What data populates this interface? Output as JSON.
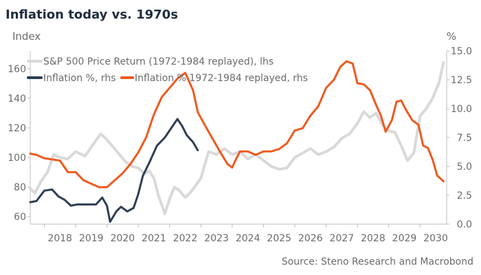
{
  "chart_data": {
    "type": "line",
    "title": "Inflation today vs. 1970s",
    "left_axis": {
      "label": "Index",
      "ticks": [
        "60",
        "80",
        "100",
        "120",
        "140",
        "160"
      ],
      "range": [
        55,
        172
      ]
    },
    "right_axis": {
      "label": "%",
      "ticks": [
        "0.0",
        "2.5",
        "5.0",
        "7.5",
        "10.0",
        "12.5",
        "15.0"
      ],
      "range": [
        0,
        15
      ]
    },
    "x_axis": {
      "ticks": [
        "2018",
        "2019",
        "2020",
        "2021",
        "2022",
        "2023",
        "2024",
        "2025",
        "2026",
        "2027",
        "2028",
        "2029",
        "2030"
      ],
      "range": [
        2017.55,
        2030.85
      ]
    },
    "source": "Source: Steno Research and Macrobond",
    "series": [
      {
        "name": "S&P 500 Price Return (1972-1984 replayed), lhs",
        "axis": "left",
        "color": "#d9d9d9",
        "x": [
          2017.55,
          2017.7,
          2017.9,
          2018.1,
          2018.3,
          2018.5,
          2018.75,
          2019.0,
          2019.3,
          2019.6,
          2019.8,
          2020.0,
          2020.2,
          2020.4,
          2020.6,
          2020.8,
          2021.0,
          2021.2,
          2021.35,
          2021.5,
          2021.65,
          2021.85,
          2022.0,
          2022.15,
          2022.3,
          2022.5,
          2022.65,
          2022.8,
          2023.0,
          2023.25,
          2023.5,
          2023.75,
          2024.0,
          2024.25,
          2024.5,
          2024.75,
          2025.0,
          2025.25,
          2025.5,
          2025.75,
          2026.0,
          2026.25,
          2026.5,
          2026.75,
          2027.0,
          2027.25,
          2027.5,
          2027.75,
          2028.0,
          2028.2,
          2028.4,
          2028.6,
          2028.8,
          2029.0,
          2029.2,
          2029.4,
          2029.6,
          2029.8,
          2030.0,
          2030.2,
          2030.4,
          2030.6,
          2030.75
        ],
        "y": [
          79,
          76,
          84,
          90,
          102,
          100,
          99,
          104,
          101,
          110,
          116,
          112,
          107,
          102,
          97,
          94,
          93,
          89,
          91,
          86,
          74,
          62,
          72,
          80,
          78,
          73,
          76,
          80,
          86,
          104,
          102,
          106,
          102,
          104,
          99,
          102,
          98,
          94,
          92,
          93,
          100,
          103,
          106,
          102,
          104,
          107,
          113,
          116,
          123,
          131,
          127,
          130,
          122,
          118,
          117,
          108,
          98,
          103,
          128,
          133,
          140,
          150,
          164
        ]
      },
      {
        "name": "Inflation %, rhs",
        "axis": "right",
        "color": "#2f3e52",
        "x": [
          2017.55,
          2017.75,
          2018.0,
          2018.25,
          2018.45,
          2018.65,
          2018.85,
          2019.05,
          2019.25,
          2019.45,
          2019.65,
          2019.85,
          2020.0,
          2020.1,
          2020.3,
          2020.45,
          2020.65,
          2020.85,
          2021.0,
          2021.15,
          2021.35,
          2021.6,
          2021.85,
          2022.05,
          2022.25,
          2022.4,
          2022.55,
          2022.75,
          2022.9
        ],
        "y": [
          1.9,
          2.0,
          2.9,
          3.0,
          2.4,
          2.1,
          1.6,
          1.7,
          1.7,
          1.7,
          1.7,
          2.3,
          1.6,
          0.2,
          1.1,
          1.5,
          1.1,
          1.4,
          2.6,
          4.2,
          5.3,
          6.8,
          7.5,
          8.3,
          9.1,
          8.5,
          7.7,
          7.1,
          6.4
        ]
      },
      {
        "name": "Inflation % 1972-1984 replayed, rhs",
        "axis": "right",
        "color": "#ee5a1e",
        "x": [
          2017.55,
          2017.75,
          2018.0,
          2018.25,
          2018.5,
          2018.75,
          2019.0,
          2019.25,
          2019.5,
          2019.75,
          2020.0,
          2020.25,
          2020.5,
          2020.75,
          2021.0,
          2021.25,
          2021.5,
          2021.75,
          2022.0,
          2022.25,
          2022.5,
          2022.75,
          2022.9,
          2023.1,
          2023.35,
          2023.5,
          2023.65,
          2023.85,
          2024.0,
          2024.1,
          2024.25,
          2024.5,
          2024.75,
          2025.0,
          2025.25,
          2025.5,
          2025.75,
          2026.0,
          2026.25,
          2026.5,
          2026.75,
          2027.0,
          2027.25,
          2027.45,
          2027.65,
          2027.85,
          2028.0,
          2028.2,
          2028.4,
          2028.6,
          2028.75,
          2028.9,
          2029.1,
          2029.25,
          2029.4,
          2029.55,
          2029.75,
          2029.95,
          2030.1,
          2030.25,
          2030.4,
          2030.55,
          2030.75
        ],
        "y": [
          6.1,
          6.0,
          5.7,
          5.6,
          5.5,
          4.5,
          4.5,
          3.8,
          3.5,
          3.2,
          3.2,
          3.8,
          4.4,
          5.2,
          6.2,
          7.5,
          9.5,
          11.0,
          11.8,
          12.6,
          13.1,
          11.6,
          9.7,
          8.7,
          7.5,
          6.8,
          6.1,
          5.2,
          4.9,
          5.5,
          6.3,
          6.3,
          6.0,
          6.3,
          6.3,
          6.5,
          7.0,
          8.1,
          8.3,
          9.4,
          10.2,
          11.8,
          12.5,
          13.6,
          14.1,
          13.9,
          12.2,
          12.1,
          11.6,
          10.3,
          9.4,
          8.0,
          9.0,
          10.6,
          10.7,
          9.9,
          9.0,
          8.6,
          6.8,
          6.6,
          5.6,
          4.2,
          3.7
        ]
      }
    ]
  }
}
